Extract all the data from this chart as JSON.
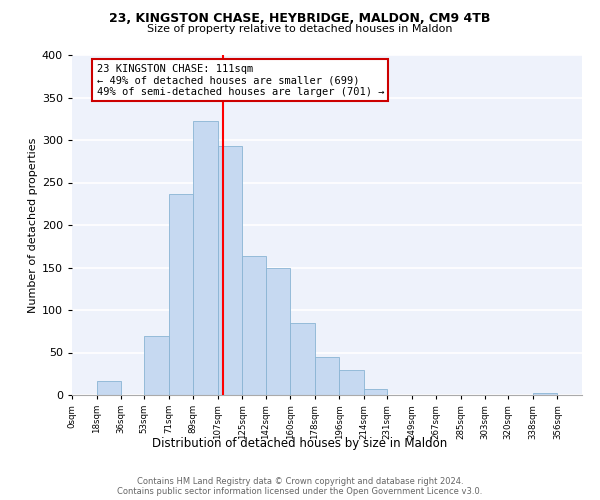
{
  "title1": "23, KINGSTON CHASE, HEYBRIDGE, MALDON, CM9 4TB",
  "title2": "Size of property relative to detached houses in Maldon",
  "xlabel": "Distribution of detached houses by size in Maldon",
  "ylabel": "Number of detached properties",
  "bar_left_edges": [
    0,
    18,
    36,
    53,
    71,
    89,
    107,
    125,
    142,
    160,
    178,
    196,
    214,
    231,
    249,
    267,
    285,
    303,
    320,
    338
  ],
  "bar_widths": [
    18,
    18,
    17,
    18,
    18,
    18,
    18,
    17,
    18,
    18,
    18,
    18,
    17,
    18,
    18,
    18,
    18,
    17,
    18,
    18
  ],
  "bar_heights": [
    0,
    16,
    0,
    70,
    237,
    322,
    293,
    163,
    149,
    85,
    45,
    30,
    7,
    0,
    0,
    0,
    0,
    0,
    0,
    2
  ],
  "bar_color": "#c6d9f1",
  "bar_edgecolor": "#8ab4d4",
  "vline_x": 111,
  "vline_color": "red",
  "annotation_line1": "23 KINGSTON CHASE: 111sqm",
  "annotation_line2": "← 49% of detached houses are smaller (699)",
  "annotation_line3": "49% of semi-detached houses are larger (701) →",
  "annotation_box_facecolor": "white",
  "annotation_box_edgecolor": "#cc0000",
  "xtick_labels": [
    "0sqm",
    "18sqm",
    "36sqm",
    "53sqm",
    "71sqm",
    "89sqm",
    "107sqm",
    "125sqm",
    "142sqm",
    "160sqm",
    "178sqm",
    "196sqm",
    "214sqm",
    "231sqm",
    "249sqm",
    "267sqm",
    "285sqm",
    "303sqm",
    "320sqm",
    "338sqm",
    "356sqm"
  ],
  "xtick_positions": [
    0,
    18,
    36,
    53,
    71,
    89,
    107,
    125,
    142,
    160,
    178,
    196,
    214,
    231,
    249,
    267,
    285,
    303,
    320,
    338,
    356
  ],
  "ylim": [
    0,
    400
  ],
  "xlim": [
    0,
    374
  ],
  "ytick_vals": [
    0,
    50,
    100,
    150,
    200,
    250,
    300,
    350,
    400
  ],
  "footer1": "Contains HM Land Registry data © Crown copyright and database right 2024.",
  "footer2": "Contains public sector information licensed under the Open Government Licence v3.0.",
  "background_color": "#eef2fb",
  "grid_color": "white",
  "fig_width": 6.0,
  "fig_height": 5.0,
  "fig_dpi": 100
}
